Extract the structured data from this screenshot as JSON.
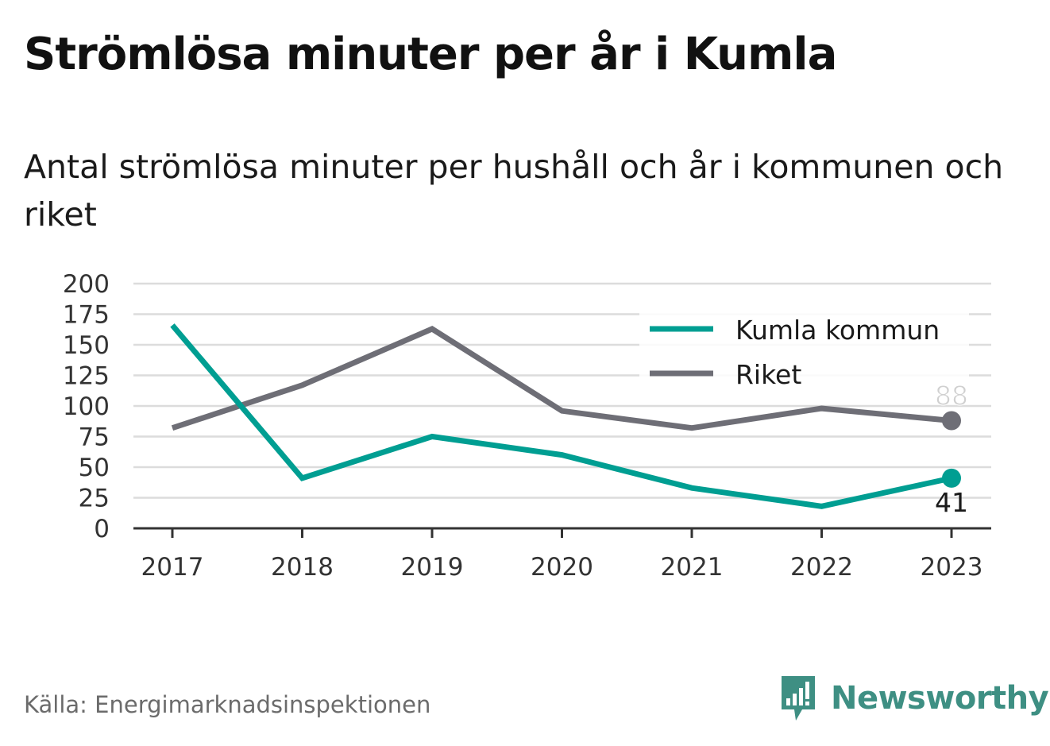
{
  "title": "Strömlösa minuter per år i Kumla",
  "subtitle": "Antal strömlösa minuter per hushåll och år i kommunen och riket",
  "source": "Källa: Energimarknadsinspektionen",
  "brand": {
    "name": "Newsworthy",
    "icon": "newsworthy-logo-icon",
    "color": "#3e8f83"
  },
  "chart_data": {
    "type": "line",
    "x": [
      "2017",
      "2018",
      "2019",
      "2020",
      "2021",
      "2022",
      "2023"
    ],
    "ylim": [
      0,
      200
    ],
    "yticks": [
      "0",
      "25",
      "50",
      "75",
      "100",
      "125",
      "150",
      "175",
      "200"
    ],
    "grid": true,
    "legend_position": "top-right",
    "series": [
      {
        "name": "Kumla kommun",
        "color": "#009e92",
        "values": [
          166,
          41,
          75,
          60,
          33,
          18,
          41
        ],
        "end_label": "41"
      },
      {
        "name": "Riket",
        "color": "#6e6e76",
        "values": [
          82,
          117,
          163,
          96,
          82,
          98,
          88
        ],
        "end_label": "88"
      }
    ]
  }
}
